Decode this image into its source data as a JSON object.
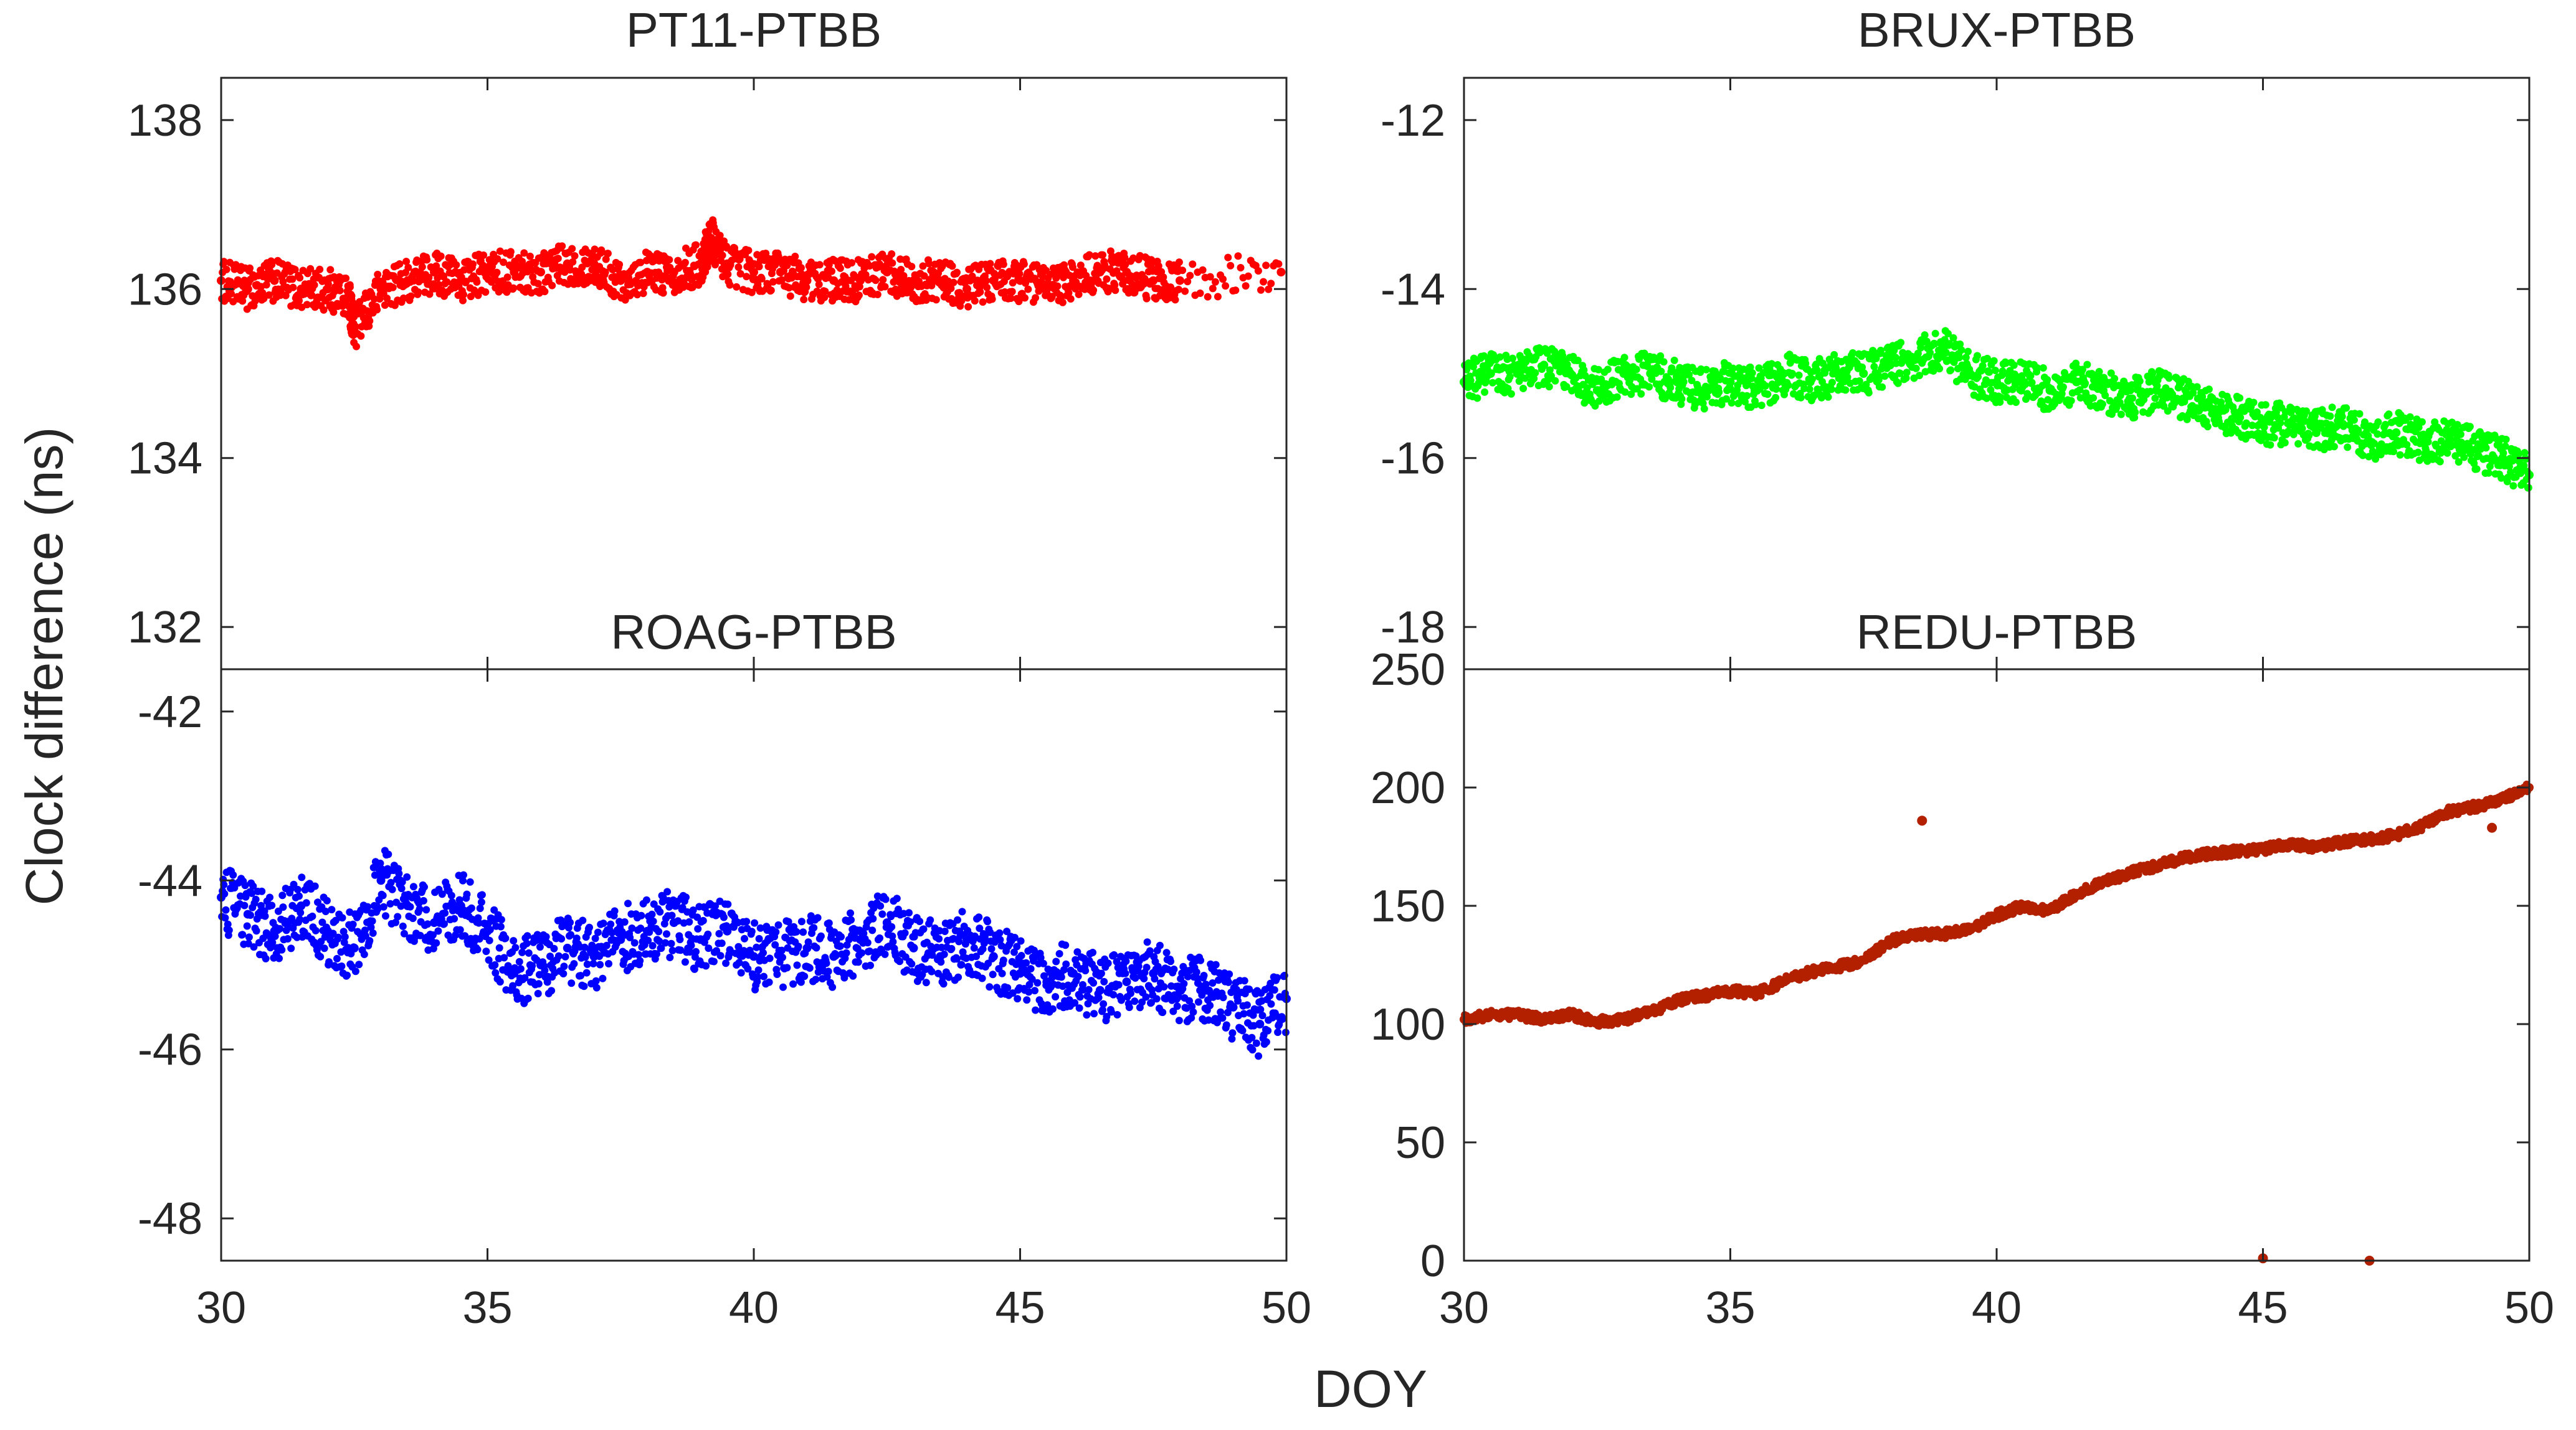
{
  "figure": {
    "ylabel": "Clock difference (ns)",
    "xlabel": "DOY"
  },
  "chart_data": [
    {
      "type": "scatter",
      "title": "PT11-PTBB",
      "xlim": [
        30,
        50
      ],
      "ylim": [
        131.5,
        138.5
      ],
      "yticks": [
        132,
        134,
        136,
        138
      ],
      "xticks": [
        30,
        35,
        40,
        45,
        50
      ],
      "color": "#ff0000",
      "series": [
        {
          "x": [
            30.0,
            30.5,
            31.0,
            31.5,
            32.0,
            32.4,
            32.5,
            33.0,
            33.5,
            34.0,
            34.5,
            35.0,
            35.5,
            36.0,
            36.5,
            37.0,
            37.5,
            38.0,
            38.5,
            39.0,
            39.2,
            39.5,
            40.0,
            40.5,
            41.0,
            41.5,
            42.0,
            42.5,
            43.0,
            43.5,
            44.0,
            44.5,
            45.0,
            45.5,
            46.0,
            46.5,
            47.0,
            47.5,
            48.0,
            49.9
          ],
          "y": [
            136.1,
            136.0,
            136.1,
            136.0,
            136.0,
            135.9,
            135.5,
            136.0,
            136.1,
            136.2,
            136.1,
            136.2,
            136.2,
            136.2,
            136.3,
            136.3,
            136.1,
            136.2,
            136.2,
            136.3,
            136.6,
            136.3,
            136.2,
            136.2,
            136.1,
            136.1,
            136.1,
            136.2,
            136.1,
            136.1,
            136.0,
            136.1,
            136.1,
            136.0,
            136.1,
            136.2,
            136.2,
            136.1,
            136.1,
            136.2
          ],
          "noise": 0.25
        }
      ]
    },
    {
      "type": "scatter",
      "title": "BRUX-PTBB",
      "xlim": [
        30,
        50
      ],
      "ylim": [
        -18.5,
        -11.5
      ],
      "yticks": [
        -18,
        -16,
        -14,
        -12
      ],
      "xticks": [
        30,
        35,
        40,
        45,
        50
      ],
      "color": "#00ff00",
      "series": [
        {
          "x": [
            30.0,
            30.5,
            31.0,
            31.5,
            32.0,
            32.5,
            33.0,
            33.5,
            34.0,
            34.5,
            35.0,
            35.5,
            36.0,
            36.5,
            37.0,
            37.5,
            38.0,
            38.5,
            39.0,
            39.5,
            40.0,
            40.5,
            41.0,
            41.5,
            42.0,
            42.5,
            43.0,
            43.5,
            44.0,
            44.5,
            45.0,
            45.5,
            46.0,
            46.5,
            47.0,
            47.5,
            48.0,
            48.5,
            49.0,
            49.5,
            50.0
          ],
          "y": [
            -15.1,
            -15.0,
            -15.0,
            -14.9,
            -15.0,
            -15.2,
            -15.0,
            -15.0,
            -15.1,
            -15.2,
            -15.1,
            -15.2,
            -15.0,
            -15.1,
            -15.0,
            -15.0,
            -14.9,
            -14.8,
            -14.7,
            -15.0,
            -15.1,
            -15.1,
            -15.2,
            -15.1,
            -15.2,
            -15.3,
            -15.2,
            -15.3,
            -15.4,
            -15.5,
            -15.6,
            -15.6,
            -15.7,
            -15.6,
            -15.8,
            -15.7,
            -15.8,
            -15.8,
            -15.9,
            -16.0,
            -16.2
          ],
          "noise": 0.25
        }
      ]
    },
    {
      "type": "scatter",
      "title": "ROAG-PTBB",
      "xlim": [
        30,
        50
      ],
      "ylim": [
        -48.5,
        -41.5
      ],
      "yticks": [
        -48,
        -46,
        -44,
        -42
      ],
      "xticks": [
        30,
        35,
        40,
        45,
        50
      ],
      "color": "#0000ff",
      "series": [
        {
          "x": [
            30.0,
            30.5,
            31.0,
            31.5,
            32.0,
            32.5,
            33.0,
            33.5,
            34.0,
            34.5,
            35.0,
            35.5,
            36.0,
            36.5,
            37.0,
            37.5,
            38.0,
            38.5,
            39.0,
            39.5,
            40.0,
            40.5,
            41.0,
            41.5,
            42.0,
            42.5,
            43.0,
            43.5,
            44.0,
            44.5,
            45.0,
            45.5,
            46.0,
            46.5,
            47.0,
            47.5,
            48.0,
            48.5,
            49.0,
            49.5,
            50.0
          ],
          "y": [
            -44.2,
            -44.4,
            -44.6,
            -44.3,
            -44.6,
            -44.8,
            -44.0,
            -44.3,
            -44.5,
            -44.3,
            -44.6,
            -45.1,
            -45.0,
            -44.8,
            -44.9,
            -44.7,
            -44.6,
            -44.5,
            -44.7,
            -44.6,
            -44.9,
            -44.9,
            -44.8,
            -44.9,
            -44.7,
            -44.5,
            -44.8,
            -44.9,
            -44.7,
            -44.9,
            -45.1,
            -45.2,
            -45.1,
            -45.3,
            -45.2,
            -45.1,
            -45.3,
            -45.3,
            -45.5,
            -45.7,
            -45.4
          ],
          "noise": 0.4
        }
      ]
    },
    {
      "type": "scatter",
      "title": "REDU-PTBB",
      "xlim": [
        30,
        50
      ],
      "ylim": [
        0,
        250
      ],
      "yticks": [
        0,
        50,
        100,
        150,
        200,
        250
      ],
      "xticks": [
        30,
        35,
        40,
        45,
        50
      ],
      "color": "#b22000",
      "series": [
        {
          "x": [
            30.0,
            30.5,
            31.0,
            31.5,
            32.0,
            32.5,
            33.0,
            33.5,
            34.0,
            34.5,
            35.0,
            35.5,
            36.0,
            36.5,
            37.0,
            37.5,
            38.0,
            38.5,
            39.0,
            39.5,
            40.0,
            40.5,
            41.0,
            41.5,
            42.0,
            42.5,
            43.0,
            43.5,
            44.0,
            44.5,
            45.0,
            45.5,
            46.0,
            46.5,
            47.0,
            47.5,
            48.0,
            48.5,
            49.0,
            49.5,
            50.0
          ],
          "y": [
            102,
            104,
            104,
            102,
            104,
            101,
            102,
            105,
            110,
            112,
            114,
            113,
            118,
            122,
            124,
            127,
            135,
            138,
            138,
            140,
            146,
            150,
            148,
            155,
            160,
            164,
            167,
            170,
            172,
            173,
            174,
            176,
            175,
            177,
            178,
            180,
            184,
            190,
            192,
            195,
            200
          ],
          "noise": 2,
          "outliers": [
            [
              38.6,
              186
            ],
            [
              45.0,
              1
            ],
            [
              47.0,
              0
            ],
            [
              49.3,
              183
            ]
          ]
        }
      ]
    }
  ]
}
